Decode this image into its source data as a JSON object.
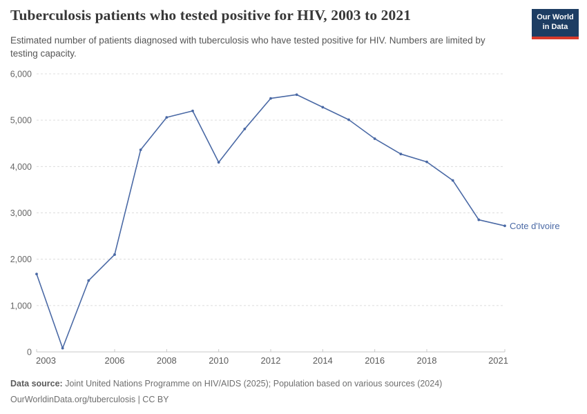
{
  "header": {
    "title": "Tuberculosis patients who tested positive for HIV, 2003 to 2021",
    "subtitle": "Estimated number of patients diagnosed with tuberculosis who have tested positive for HIV. Numbers are limited by testing capacity.",
    "logo": {
      "line1": "Our World",
      "line2": "in Data"
    }
  },
  "chart_data": {
    "type": "line",
    "title": "Tuberculosis patients who tested positive for HIV, 2003 to 2021",
    "xlabel": "",
    "ylabel": "",
    "xlim": [
      2003,
      2021
    ],
    "ylim": [
      0,
      6000
    ],
    "grid": "horizontal-dashed",
    "legend_position": "end-of-line-label",
    "x": [
      2003,
      2004,
      2005,
      2006,
      2007,
      2008,
      2009,
      2010,
      2011,
      2012,
      2013,
      2014,
      2015,
      2016,
      2017,
      2018,
      2019,
      2020,
      2021
    ],
    "series": [
      {
        "name": "Cote d'Ivoire",
        "color": "#4a69a5",
        "values": [
          1680,
          80,
          1540,
          2100,
          4360,
          5060,
          5200,
          4090,
          4810,
          5470,
          5550,
          5280,
          5010,
          4600,
          4270,
          4100,
          3700,
          2850,
          2720
        ]
      }
    ],
    "x_ticks": [
      2003,
      2006,
      2008,
      2010,
      2012,
      2014,
      2016,
      2018,
      2021
    ],
    "x_tick_labels": [
      "2003",
      "2006",
      "2008",
      "2010",
      "2012",
      "2014",
      "2016",
      "2018",
      "2021"
    ],
    "y_ticks": [
      0,
      1000,
      2000,
      3000,
      4000,
      5000,
      6000
    ],
    "y_tick_labels": [
      "0",
      "1,000",
      "2,000",
      "3,000",
      "4,000",
      "5,000",
      "6,000"
    ],
    "end_label": "Cote d'Ivoire"
  },
  "footer": {
    "data_source_label": "Data source:",
    "data_source_text": " Joint United Nations Programme on HIV/AIDS (2025); Population based on various sources (2024)",
    "license_line": "OurWorldinData.org/tuberculosis | CC BY"
  },
  "colors": {
    "line": "#4a69a5",
    "grid": "#dcdcdc",
    "axis": "#c8c8c8",
    "y_tick_text": "#666666",
    "x_tick_text": "#5b5b5b",
    "title_text": "#383838",
    "subtitle_text": "#555555",
    "footer_text": "#6e6e6e",
    "logo_bg": "#1d3d63",
    "logo_accent": "#d93a2b"
  }
}
